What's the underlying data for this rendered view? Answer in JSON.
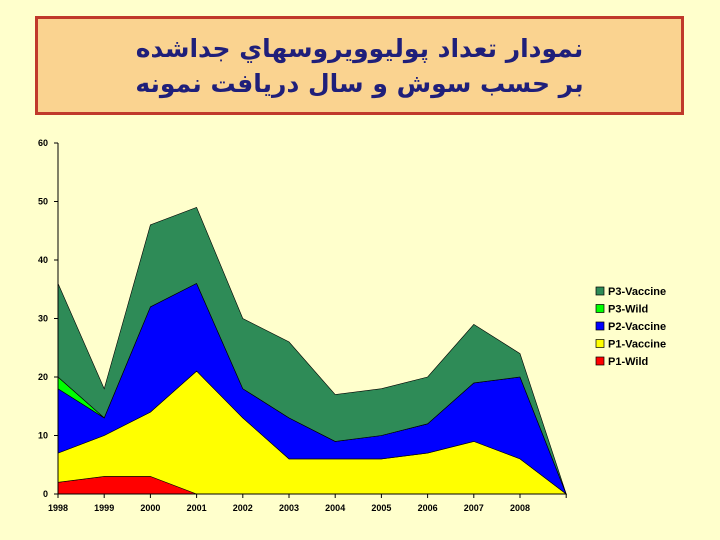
{
  "title": {
    "line1": "نمودار تعداد پوليوويروسهاي جداشده",
    "line2": "بر حسب سوش و سال دريافت نمونه"
  },
  "chart_data": {
    "type": "area",
    "stacked": true,
    "x": [
      "1998",
      "1999",
      "2000",
      "2001",
      "2002",
      "2003",
      "2004",
      "2005",
      "2006",
      "2007",
      "2008",
      ""
    ],
    "ylim": [
      0,
      60
    ],
    "yticks": [
      0,
      10,
      20,
      30,
      40,
      50,
      60
    ],
    "title": "",
    "xlabel": "",
    "ylabel": "",
    "legend_position": "right",
    "series": [
      {
        "name": "P1-Wild",
        "color": "#ff0000",
        "values": [
          2,
          3,
          3,
          0,
          0,
          0,
          0,
          0,
          0,
          0,
          0,
          0
        ]
      },
      {
        "name": "P1-Vaccine",
        "color": "#ffff00",
        "values": [
          5,
          7,
          11,
          21,
          13,
          6,
          6,
          6,
          7,
          9,
          6,
          0
        ]
      },
      {
        "name": "P2-Vaccine",
        "color": "#0000ff",
        "values": [
          11,
          3,
          18,
          15,
          5,
          7,
          3,
          4,
          5,
          10,
          14,
          0
        ]
      },
      {
        "name": "P3-Wild",
        "color": "#00ff00",
        "values": [
          2,
          0,
          0,
          0,
          0,
          0,
          0,
          0,
          0,
          0,
          0,
          0
        ]
      },
      {
        "name": "P3-Vaccine",
        "color": "#2e8b57",
        "values": [
          16,
          5,
          14,
          13,
          12,
          13,
          8,
          8,
          8,
          10,
          4,
          0
        ]
      }
    ]
  }
}
